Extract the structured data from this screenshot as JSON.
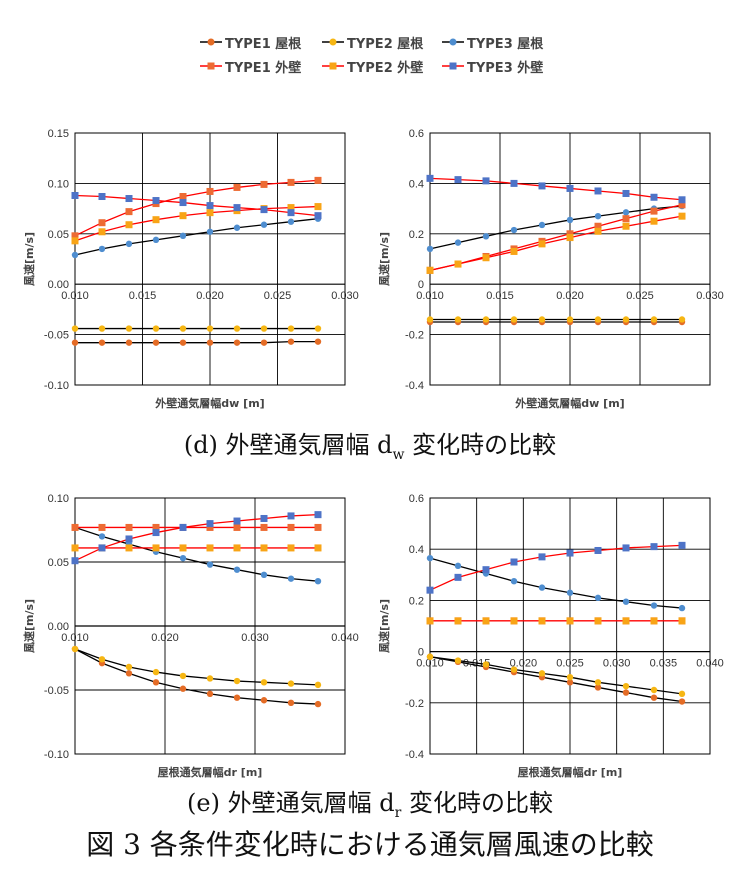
{
  "legend": [
    {
      "label": "TYPE1 屋根",
      "color": "#E46C26",
      "marker": "circle"
    },
    {
      "label": "TYPE2 屋根",
      "color": "#F6B613",
      "marker": "circle"
    },
    {
      "label": "TYPE3 屋根",
      "color": "#4E8DCF",
      "marker": "circle"
    },
    {
      "label": "TYPE1 外壁",
      "color": "#ED6B33",
      "marker": "square"
    },
    {
      "label": "TYPE2 外壁",
      "color": "#F8A416",
      "marker": "square"
    },
    {
      "label": "TYPE3 外壁",
      "color": "#4E73C7",
      "marker": "square"
    }
  ],
  "captions": {
    "d_prefix": "(d)  外壁通気層幅 d",
    "d_sub": "w",
    "d_suffix": " 変化時の比較",
    "e_prefix": "(e)  外壁通気層幅 d",
    "e_sub": "r",
    "e_suffix": " 変化時の比較",
    "figure": "図 3  各条件変化時における通気層風速の比較"
  },
  "chart_data": [
    {
      "id": "d-left",
      "type": "line",
      "xlabel": "外壁通気層幅dw [m]",
      "ylabel": "風速[m/s]",
      "xlim": [
        0.01,
        0.03
      ],
      "ylim": [
        -0.1,
        0.15
      ],
      "xticks": [
        "0.010",
        "0.015",
        "0.020",
        "0.025",
        "0.030"
      ],
      "yticks": [
        "-0.10",
        "-0.05",
        "0.00",
        "0.05",
        "0.10",
        "0.15"
      ],
      "grid": true,
      "series": [
        {
          "name": "TYPE1 屋根",
          "color": "#E46C26",
          "marker": "circle",
          "line": "#000000",
          "x": [
            0.01,
            0.012,
            0.014,
            0.016,
            0.018,
            0.02,
            0.022,
            0.024,
            0.026,
            0.028
          ],
          "y": [
            -0.058,
            -0.058,
            -0.058,
            -0.058,
            -0.058,
            -0.058,
            -0.058,
            -0.058,
            -0.057,
            -0.057
          ]
        },
        {
          "name": "TYPE2 屋根",
          "color": "#F6B613",
          "marker": "circle",
          "line": "#000000",
          "x": [
            0.01,
            0.012,
            0.014,
            0.016,
            0.018,
            0.02,
            0.022,
            0.024,
            0.026,
            0.028
          ],
          "y": [
            -0.044,
            -0.044,
            -0.044,
            -0.044,
            -0.044,
            -0.044,
            -0.044,
            -0.044,
            -0.044,
            -0.044
          ]
        },
        {
          "name": "TYPE3 屋根",
          "color": "#4E8DCF",
          "marker": "circle",
          "line": "#000000",
          "x": [
            0.01,
            0.012,
            0.014,
            0.016,
            0.018,
            0.02,
            0.022,
            0.024,
            0.026,
            0.028
          ],
          "y": [
            0.029,
            0.035,
            0.04,
            0.044,
            0.048,
            0.052,
            0.056,
            0.059,
            0.062,
            0.065
          ]
        },
        {
          "name": "TYPE1 外壁",
          "color": "#ED6B33",
          "marker": "square",
          "line": "#ff0000",
          "x": [
            0.01,
            0.012,
            0.014,
            0.016,
            0.018,
            0.02,
            0.022,
            0.024,
            0.026,
            0.028
          ],
          "y": [
            0.048,
            0.061,
            0.072,
            0.08,
            0.087,
            0.092,
            0.096,
            0.099,
            0.101,
            0.103
          ]
        },
        {
          "name": "TYPE2 外壁",
          "color": "#F8A416",
          "marker": "square",
          "line": "#ff0000",
          "x": [
            0.01,
            0.012,
            0.014,
            0.016,
            0.018,
            0.02,
            0.022,
            0.024,
            0.026,
            0.028
          ],
          "y": [
            0.043,
            0.052,
            0.059,
            0.064,
            0.068,
            0.071,
            0.073,
            0.075,
            0.076,
            0.077
          ]
        },
        {
          "name": "TYPE3 外壁",
          "color": "#4E73C7",
          "marker": "square",
          "line": "#ff0000",
          "x": [
            0.01,
            0.012,
            0.014,
            0.016,
            0.018,
            0.02,
            0.022,
            0.024,
            0.026,
            0.028
          ],
          "y": [
            0.088,
            0.087,
            0.085,
            0.083,
            0.081,
            0.078,
            0.076,
            0.074,
            0.071,
            0.068
          ]
        }
      ]
    },
    {
      "id": "d-right",
      "type": "line",
      "xlabel": "外壁通気層幅dw [m]",
      "ylabel": "風速[m/s]",
      "xlim": [
        0.01,
        0.03
      ],
      "ylim": [
        -0.4,
        0.6
      ],
      "xticks": [
        "0.010",
        "0.015",
        "0.020",
        "0.025",
        "0.030"
      ],
      "yticks": [
        "-0.4",
        "-0.2",
        "0",
        "0.2",
        "0.4",
        "0.6"
      ],
      "grid": true,
      "series": [
        {
          "name": "TYPE1 屋根",
          "color": "#E46C26",
          "marker": "circle",
          "line": "#000000",
          "x": [
            0.01,
            0.012,
            0.014,
            0.016,
            0.018,
            0.02,
            0.022,
            0.024,
            0.026,
            0.028
          ],
          "y": [
            -0.15,
            -0.15,
            -0.15,
            -0.15,
            -0.15,
            -0.15,
            -0.15,
            -0.15,
            -0.15,
            -0.15
          ]
        },
        {
          "name": "TYPE2 屋根",
          "color": "#F6B613",
          "marker": "circle",
          "line": "#000000",
          "x": [
            0.01,
            0.012,
            0.014,
            0.016,
            0.018,
            0.02,
            0.022,
            0.024,
            0.026,
            0.028
          ],
          "y": [
            -0.14,
            -0.14,
            -0.14,
            -0.14,
            -0.14,
            -0.14,
            -0.14,
            -0.14,
            -0.14,
            -0.14
          ]
        },
        {
          "name": "TYPE3 屋根",
          "color": "#4E8DCF",
          "marker": "circle",
          "line": "#000000",
          "x": [
            0.01,
            0.012,
            0.014,
            0.016,
            0.018,
            0.02,
            0.022,
            0.024,
            0.026,
            0.028
          ],
          "y": [
            0.14,
            0.165,
            0.19,
            0.215,
            0.235,
            0.255,
            0.27,
            0.285,
            0.3,
            0.31
          ]
        },
        {
          "name": "TYPE1 外壁",
          "color": "#ED6B33",
          "marker": "square",
          "line": "#ff0000",
          "x": [
            0.01,
            0.012,
            0.014,
            0.016,
            0.018,
            0.02,
            0.022,
            0.024,
            0.026,
            0.028
          ],
          "y": [
            0.055,
            0.08,
            0.11,
            0.14,
            0.17,
            0.2,
            0.23,
            0.26,
            0.29,
            0.315
          ]
        },
        {
          "name": "TYPE2 外壁",
          "color": "#F8A416",
          "marker": "square",
          "line": "#ff0000",
          "x": [
            0.01,
            0.012,
            0.014,
            0.016,
            0.018,
            0.02,
            0.022,
            0.024,
            0.026,
            0.028
          ],
          "y": [
            0.055,
            0.08,
            0.105,
            0.13,
            0.16,
            0.185,
            0.21,
            0.23,
            0.25,
            0.27
          ]
        },
        {
          "name": "TYPE3 外壁",
          "color": "#4E73C7",
          "marker": "square",
          "line": "#ff0000",
          "x": [
            0.01,
            0.012,
            0.014,
            0.016,
            0.018,
            0.02,
            0.022,
            0.024,
            0.026,
            0.028
          ],
          "y": [
            0.42,
            0.415,
            0.41,
            0.4,
            0.39,
            0.38,
            0.37,
            0.36,
            0.345,
            0.335
          ]
        }
      ]
    },
    {
      "id": "e-left",
      "type": "line",
      "xlabel": "屋根通気層幅dr [m]",
      "ylabel": "風速[m/s]",
      "xlim": [
        0.01,
        0.04
      ],
      "ylim": [
        -0.1,
        0.1
      ],
      "xticks": [
        "0.010",
        "0.020",
        "0.030",
        "0.040"
      ],
      "yticks": [
        "-0.10",
        "-0.05",
        "0.00",
        "0.05",
        "0.10"
      ],
      "grid": true,
      "series": [
        {
          "name": "TYPE1 屋根",
          "color": "#E46C26",
          "marker": "circle",
          "line": "#000000",
          "x": [
            0.01,
            0.013,
            0.016,
            0.019,
            0.022,
            0.025,
            0.028,
            0.031,
            0.034,
            0.037
          ],
          "y": [
            -0.018,
            -0.029,
            -0.037,
            -0.044,
            -0.049,
            -0.053,
            -0.056,
            -0.058,
            -0.06,
            -0.061
          ]
        },
        {
          "name": "TYPE2 屋根",
          "color": "#F6B613",
          "marker": "circle",
          "line": "#000000",
          "x": [
            0.01,
            0.013,
            0.016,
            0.019,
            0.022,
            0.025,
            0.028,
            0.031,
            0.034,
            0.037
          ],
          "y": [
            -0.018,
            -0.026,
            -0.032,
            -0.036,
            -0.039,
            -0.041,
            -0.043,
            -0.044,
            -0.045,
            -0.046
          ]
        },
        {
          "name": "TYPE3 屋根",
          "color": "#4E8DCF",
          "marker": "circle",
          "line": "#000000",
          "x": [
            0.01,
            0.013,
            0.016,
            0.019,
            0.022,
            0.025,
            0.028,
            0.031,
            0.034,
            0.037
          ],
          "y": [
            0.077,
            0.07,
            0.064,
            0.058,
            0.053,
            0.048,
            0.044,
            0.04,
            0.037,
            0.035
          ]
        },
        {
          "name": "TYPE1 外壁",
          "color": "#ED6B33",
          "marker": "square",
          "line": "#ff0000",
          "x": [
            0.01,
            0.013,
            0.016,
            0.019,
            0.022,
            0.025,
            0.028,
            0.031,
            0.034,
            0.037
          ],
          "y": [
            0.077,
            0.077,
            0.077,
            0.077,
            0.077,
            0.077,
            0.077,
            0.077,
            0.077,
            0.077
          ]
        },
        {
          "name": "TYPE2 外壁",
          "color": "#F8A416",
          "marker": "square",
          "line": "#ff0000",
          "x": [
            0.01,
            0.013,
            0.016,
            0.019,
            0.022,
            0.025,
            0.028,
            0.031,
            0.034,
            0.037
          ],
          "y": [
            0.061,
            0.061,
            0.061,
            0.061,
            0.061,
            0.061,
            0.061,
            0.061,
            0.061,
            0.061
          ]
        },
        {
          "name": "TYPE3 外壁",
          "color": "#4E73C7",
          "marker": "square",
          "line": "#ff0000",
          "x": [
            0.01,
            0.013,
            0.016,
            0.019,
            0.022,
            0.025,
            0.028,
            0.031,
            0.034,
            0.037
          ],
          "y": [
            0.051,
            0.061,
            0.068,
            0.073,
            0.077,
            0.08,
            0.082,
            0.084,
            0.086,
            0.087
          ]
        }
      ]
    },
    {
      "id": "e-right",
      "type": "line",
      "xlabel": "屋根通気層幅dr [m]",
      "ylabel": "風速[m/s]",
      "xlim": [
        0.01,
        0.04
      ],
      "ylim": [
        -0.4,
        0.6
      ],
      "xticks": [
        "0.010",
        "0.015",
        "0.020",
        "0.025",
        "0.030",
        "0.035",
        "0.040"
      ],
      "yticks": [
        "-0.4",
        "-0.2",
        "0",
        "0.2",
        "0.4",
        "0.6"
      ],
      "grid": true,
      "series": [
        {
          "name": "TYPE1 屋根",
          "color": "#E46C26",
          "marker": "circle",
          "line": "#000000",
          "x": [
            0.01,
            0.013,
            0.016,
            0.019,
            0.022,
            0.025,
            0.028,
            0.031,
            0.034,
            0.037
          ],
          "y": [
            -0.02,
            -0.04,
            -0.06,
            -0.08,
            -0.1,
            -0.12,
            -0.14,
            -0.16,
            -0.18,
            -0.195
          ]
        },
        {
          "name": "TYPE2 屋根",
          "color": "#F6B613",
          "marker": "circle",
          "line": "#000000",
          "x": [
            0.01,
            0.013,
            0.016,
            0.019,
            0.022,
            0.025,
            0.028,
            0.031,
            0.034,
            0.037
          ],
          "y": [
            -0.02,
            -0.035,
            -0.05,
            -0.07,
            -0.085,
            -0.1,
            -0.12,
            -0.135,
            -0.15,
            -0.165
          ]
        },
        {
          "name": "TYPE3 屋根",
          "color": "#4E8DCF",
          "marker": "circle",
          "line": "#000000",
          "x": [
            0.01,
            0.013,
            0.016,
            0.019,
            0.022,
            0.025,
            0.028,
            0.031,
            0.034,
            0.037
          ],
          "y": [
            0.365,
            0.335,
            0.305,
            0.275,
            0.25,
            0.23,
            0.21,
            0.195,
            0.18,
            0.17
          ]
        },
        {
          "name": "TYPE1 外壁",
          "color": "#ED6B33",
          "marker": "square",
          "line": "#ff0000",
          "x": [
            0.01,
            0.013,
            0.016,
            0.019,
            0.022,
            0.025,
            0.028,
            0.031,
            0.034,
            0.037
          ],
          "y": [
            0.12,
            0.12,
            0.12,
            0.12,
            0.12,
            0.12,
            0.12,
            0.12,
            0.12,
            0.12
          ]
        },
        {
          "name": "TYPE2 外壁",
          "color": "#F8A416",
          "marker": "square",
          "line": "#ff0000",
          "x": [
            0.01,
            0.013,
            0.016,
            0.019,
            0.022,
            0.025,
            0.028,
            0.031,
            0.034,
            0.037
          ],
          "y": [
            0.12,
            0.12,
            0.12,
            0.12,
            0.12,
            0.12,
            0.12,
            0.12,
            0.12,
            0.12
          ]
        },
        {
          "name": "TYPE3 外壁",
          "color": "#4E73C7",
          "marker": "square",
          "line": "#ff0000",
          "x": [
            0.01,
            0.013,
            0.016,
            0.019,
            0.022,
            0.025,
            0.028,
            0.031,
            0.034,
            0.037
          ],
          "y": [
            0.24,
            0.29,
            0.32,
            0.35,
            0.37,
            0.385,
            0.395,
            0.405,
            0.41,
            0.415
          ]
        }
      ]
    }
  ]
}
